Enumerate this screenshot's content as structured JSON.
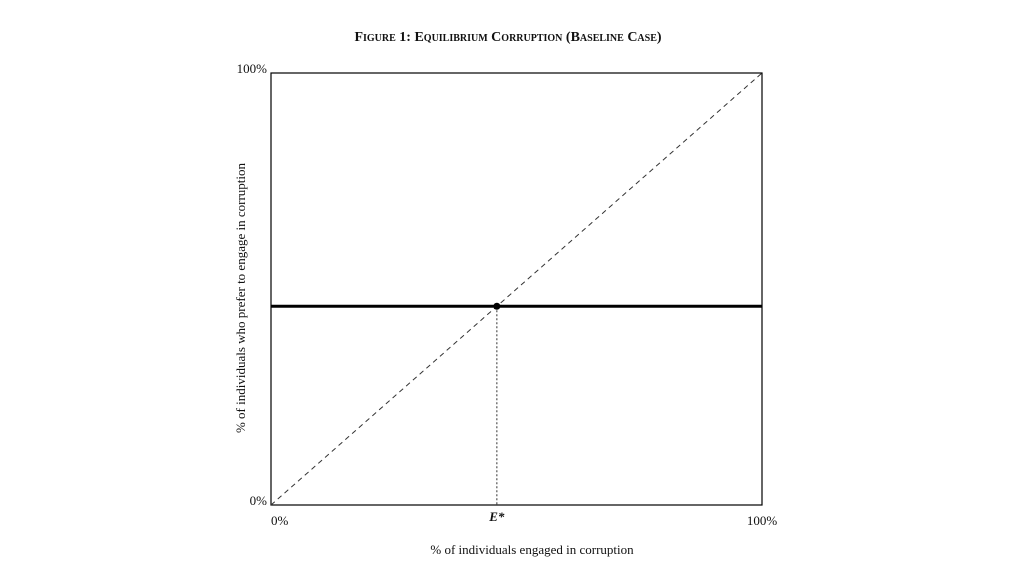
{
  "chart_data": {
    "type": "line",
    "title": "Figure 1: Equilibrium Corruption (Baseline Case)",
    "x_label": "% of individuals engaged in corruption",
    "y_label": "% of individuals who prefer to engage in corruption",
    "x": [
      0,
      100
    ],
    "series": [
      {
        "color": "#333333",
        "values": [
          0,
          100
        ],
        "dash": "5,4",
        "width": 1
      },
      {
        "color": "#000000",
        "values": [
          46,
          46
        ],
        "width": 3
      }
    ],
    "points": [
      {
        "x": 46,
        "y": 46,
        "color": "#000000"
      }
    ],
    "xlim": [
      0,
      100
    ],
    "ylim": [
      0,
      100
    ],
    "xticks": [
      {
        "value": 0,
        "label": "0%"
      },
      {
        "value": 46,
        "label": "E*"
      },
      {
        "value": 100,
        "label": "100%"
      }
    ],
    "yticks": [
      {
        "value": 0,
        "label": "0%"
      },
      {
        "value": 100,
        "label": "100%"
      }
    ],
    "grid": false
  }
}
